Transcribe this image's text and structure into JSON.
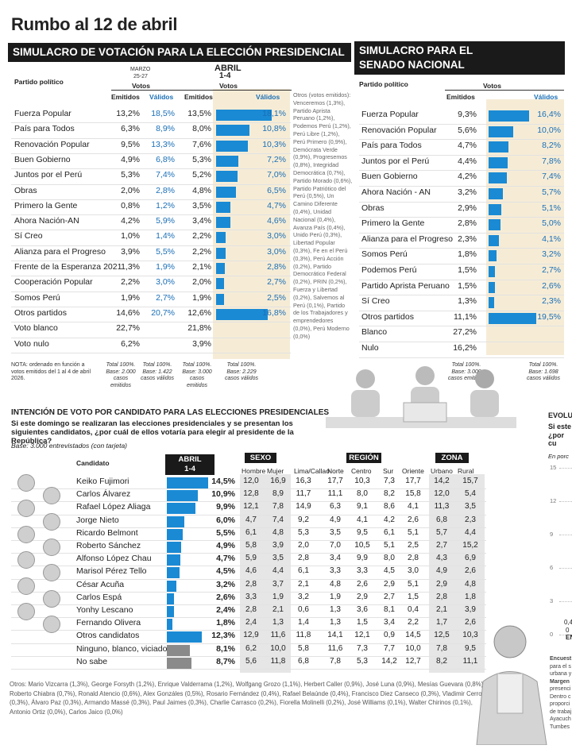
{
  "title": "Rumbo al 12 de abril",
  "presidential": {
    "heading": "SIMULACRO DE VOTACIÓN PARA LA ELECCIÓN PRESIDENCIAL",
    "partido_label": "Partido político",
    "marzo_label": "MARZO",
    "marzo_dates": "25-27",
    "abril_label": "ABRIL",
    "abril_dates": "1-4",
    "votos_label": "Votos",
    "emitidos_label": "Emitidos",
    "validos_label": "Válidos",
    "rows": [
      {
        "party": "Fuerza Popular",
        "m_e": "13,2%",
        "m_v": "18,5%",
        "a_e": "13,5%",
        "a_v": "18,1%",
        "v": 18.1
      },
      {
        "party": "País para Todos",
        "m_e": "6,3%",
        "m_v": "8,9%",
        "a_e": "8,0%",
        "a_v": "10,8%",
        "v": 10.8
      },
      {
        "party": "Renovación Popular",
        "m_e": "9,5%",
        "m_v": "13,3%",
        "a_e": "7,6%",
        "a_v": "10,3%",
        "v": 10.3
      },
      {
        "party": "Buen Gobierno",
        "m_e": "4,9%",
        "m_v": "6,8%",
        "a_e": "5,3%",
        "a_v": "7,2%",
        "v": 7.2
      },
      {
        "party": "Juntos por el Perú",
        "m_e": "5,3%",
        "m_v": "7,4%",
        "a_e": "5,2%",
        "a_v": "7,0%",
        "v": 7.0
      },
      {
        "party": "Obras",
        "m_e": "2,0%",
        "m_v": "2,8%",
        "a_e": "4,8%",
        "a_v": "6,5%",
        "v": 6.5
      },
      {
        "party": "Primero la Gente",
        "m_e": "0,8%",
        "m_v": "1,2%",
        "a_e": "3,5%",
        "a_v": "4,7%",
        "v": 4.7
      },
      {
        "party": "Ahora Nación-AN",
        "m_e": "4,2%",
        "m_v": "5,9%",
        "a_e": "3,4%",
        "a_v": "4,6%",
        "v": 4.6
      },
      {
        "party": "Sí Creo",
        "m_e": "1,0%",
        "m_v": "1,4%",
        "a_e": "2,2%",
        "a_v": "3,0%",
        "v": 3.0
      },
      {
        "party": "Alianza para el Progreso",
        "m_e": "3,9%",
        "m_v": "5,5%",
        "a_e": "2,2%",
        "a_v": "3,0%",
        "v": 3.0
      },
      {
        "party": "Frente de la Esperanza 2021",
        "m_e": "1,3%",
        "m_v": "1,9%",
        "a_e": "2,1%",
        "a_v": "2,8%",
        "v": 2.8
      },
      {
        "party": "Cooperación Popular",
        "m_e": "2,2%",
        "m_v": "3,0%",
        "a_e": "2,0%",
        "a_v": "2,7%",
        "v": 2.7
      },
      {
        "party": "Somos Perú",
        "m_e": "1,9%",
        "m_v": "2,7%",
        "a_e": "1,9%",
        "a_v": "2,5%",
        "v": 2.5
      },
      {
        "party": "Otros partidos",
        "m_e": "14,6%",
        "m_v": "20,7%",
        "a_e": "12,6%",
        "a_v": "16,8%",
        "v": 16.8
      },
      {
        "party": "Voto blanco",
        "m_e": "22,7%",
        "m_v": "",
        "a_e": "21,8%",
        "a_v": "",
        "v": 0
      },
      {
        "party": "Voto nulo",
        "m_e": "6,2%",
        "m_v": "",
        "a_e": "3,9%",
        "a_v": "",
        "v": 0
      }
    ],
    "otros_text": "Otros (votos emitidos): Venceremos (1,3%), Partido Aprista Peruano (1,2%), Podemos Perú (1,2%), Perú Libre (1,2%), Perú Primero (0,9%), Demócrata Verde (0,9%), Progresemos (0,8%), Integridad Democrática (0,7%), Partido Morado (0,6%), Partido Patriótico del Perú (0,5%), Un Camino Diferente (0,4%), Unidad Nacional (0,4%), Avanza País (0,4%), Unido Perú (0,3%), Libertad Popular (0,3%), Fe en el Perú (0,3%), Perú Acción (0,2%), Partido Democrático Federal (0,2%), PRIN (0,2%), Fuerza y Libertad (0,2%), Salvemos al Perú (0,1%), Partido de los Trabajadores y emprendedores (0,0%), Perú Moderno (0,0%)",
    "nota": "NOTA: ordenado en función a votos emitidos del 1 al 4 de abril 2026.",
    "base1": "Total 100%. Base: 2.000 casos emitidos",
    "base2": "Total 100%. Base: 1.422 casos válidos",
    "base3": "Total 100%. Base: 3.000 casos emitidos",
    "base4": "Total 100%. Base: 2.229 casos válidos"
  },
  "senate": {
    "heading_line1": "SIMULACRO PARA EL",
    "heading_line2": "SENADO NACIONAL",
    "partido_label": "Partido político",
    "votos_label": "Votos",
    "emitidos_label": "Emitidos",
    "validos_label": "Válidos",
    "rows": [
      {
        "party": "Fuerza Popular",
        "e": "9,3%",
        "val": "16,4%",
        "v": 16.4
      },
      {
        "party": "Renovación Popular",
        "e": "5,6%",
        "val": "10,0%",
        "v": 10.0
      },
      {
        "party": "País para Todos",
        "e": "4,7%",
        "val": "8,2%",
        "v": 8.2
      },
      {
        "party": "Juntos por el Perú",
        "e": "4,4%",
        "val": "7,8%",
        "v": 7.8
      },
      {
        "party": "Buen Gobierno",
        "e": "4,2%",
        "val": "7,4%",
        "v": 7.4
      },
      {
        "party": "Ahora Nación - AN",
        "e": "3,2%",
        "val": "5,7%",
        "v": 5.7
      },
      {
        "party": "Obras",
        "e": "2,9%",
        "val": "5,1%",
        "v": 5.1
      },
      {
        "party": "Primero la Gente",
        "e": "2,8%",
        "val": "5,0%",
        "v": 5.0
      },
      {
        "party": "Alianza para el Progreso",
        "e": "2,3%",
        "val": "4,1%",
        "v": 4.1
      },
      {
        "party": "Somos Perú",
        "e": "1,8%",
        "val": "3,2%",
        "v": 3.2
      },
      {
        "party": "Podemos Perú",
        "e": "1,5%",
        "val": "2,7%",
        "v": 2.7
      },
      {
        "party": "Partido Aprista Peruano",
        "e": "1,5%",
        "val": "2,6%",
        "v": 2.6
      },
      {
        "party": "Sí Creo",
        "e": "1,3%",
        "val": "2,3%",
        "v": 2.3
      },
      {
        "party": "Otros partidos",
        "e": "11,1%",
        "val": "19,5%",
        "v": 19.5
      },
      {
        "party": "Blanco",
        "e": "27,2%",
        "val": "",
        "v": 0
      },
      {
        "party": "Nulo",
        "e": "16,2%",
        "val": "",
        "v": 0
      }
    ],
    "base1": "Total 100%. Base: 3.000 casos emitidos",
    "base2": "Total 100%. Base: 1.698 casos válidos"
  },
  "candidates": {
    "heading": "INTENCIÓN DE VOTO POR CANDIDATO PARA LAS ELECCIONES PRESIDENCIALES",
    "question": "Si este domingo se realizaran las elecciones presidenciales y se presentan los siguientes candidatos, ¿por cuál de ellos votaría para elegir al presidente de la República?",
    "base": "Base: 3.000 entrevistados (con tarjeta)",
    "candidato_label": "Candidato",
    "abril_label": "ABRIL",
    "abril_dates": "1-4",
    "sexo_label": "SEXO",
    "region_label": "REGIÓN",
    "zona_label": "ZONA",
    "cols": [
      "Hombre",
      "Mujer",
      "Lima/Callao",
      "Norte",
      "Centro",
      "Sur",
      "Oriente",
      "Urbano",
      "Rural"
    ],
    "rows": [
      {
        "name": "Keiko Fujimori",
        "total": "14,5%",
        "v": 14.5,
        "d": [
          "12,0",
          "16,9",
          "16,3",
          "17,7",
          "10,3",
          "7,3",
          "17,7",
          "14,2",
          "15,7"
        ]
      },
      {
        "name": "Carlos Álvarez",
        "total": "10,9%",
        "v": 10.9,
        "d": [
          "12,8",
          "8,9",
          "11,7",
          "11,1",
          "8,0",
          "8,2",
          "15,8",
          "12,0",
          "5,4"
        ]
      },
      {
        "name": "Rafael López Aliaga",
        "total": "9,9%",
        "v": 9.9,
        "d": [
          "12,1",
          "7,8",
          "14,9",
          "6,3",
          "9,1",
          "8,6",
          "4,1",
          "11,3",
          "3,5"
        ]
      },
      {
        "name": "Jorge Nieto",
        "total": "6,0%",
        "v": 6.0,
        "d": [
          "4,7",
          "7,4",
          "9,2",
          "4,9",
          "4,1",
          "4,2",
          "2,6",
          "6,8",
          "2,3"
        ]
      },
      {
        "name": "Ricardo Belmont",
        "total": "5,5%",
        "v": 5.5,
        "d": [
          "6,1",
          "4,8",
          "5,3",
          "3,5",
          "9,5",
          "6,1",
          "5,1",
          "5,7",
          "4,4"
        ]
      },
      {
        "name": "Roberto Sánchez",
        "total": "4,9%",
        "v": 4.9,
        "d": [
          "5,8",
          "3,9",
          "2,0",
          "7,0",
          "10,5",
          "5,1",
          "2,5",
          "2,7",
          "15,2"
        ]
      },
      {
        "name": "Alfonso López Chau",
        "total": "4,7%",
        "v": 4.7,
        "d": [
          "5,9",
          "3,5",
          "2,8",
          "3,4",
          "9,9",
          "8,0",
          "2,8",
          "4,3",
          "6,9"
        ]
      },
      {
        "name": "Marisol Pérez Tello",
        "total": "4,5%",
        "v": 4.5,
        "d": [
          "4,6",
          "4,4",
          "6,1",
          "3,3",
          "3,3",
          "4,5",
          "3,0",
          "4,9",
          "2,6"
        ]
      },
      {
        "name": "César Acuña",
        "total": "3,2%",
        "v": 3.2,
        "d": [
          "2,8",
          "3,7",
          "2,1",
          "4,8",
          "2,6",
          "2,9",
          "5,1",
          "2,9",
          "4,8"
        ]
      },
      {
        "name": "Carlos Espá",
        "total": "2,6%",
        "v": 2.6,
        "d": [
          "3,3",
          "1,9",
          "3,2",
          "1,9",
          "2,9",
          "2,7",
          "1,5",
          "2,8",
          "1,8"
        ]
      },
      {
        "name": "Yonhy Lescano",
        "total": "2,4%",
        "v": 2.4,
        "d": [
          "2,8",
          "2,1",
          "0,6",
          "1,3",
          "3,6",
          "8,1",
          "0,4",
          "2,1",
          "3,9"
        ]
      },
      {
        "name": "Fernando Olivera",
        "total": "1,8%",
        "v": 1.8,
        "d": [
          "2,4",
          "1,3",
          "1,4",
          "1,3",
          "1,5",
          "3,4",
          "2,2",
          "1,7",
          "2,6"
        ]
      },
      {
        "name": "Otros candidatos",
        "total": "12,3%",
        "v": 12.3,
        "d": [
          "12,9",
          "11,6",
          "11,8",
          "14,1",
          "12,1",
          "0,9",
          "14,5",
          "12,5",
          "10,3"
        ]
      },
      {
        "name": "Ninguno, blanco, viciado",
        "total": "8,1%",
        "v": 8.1,
        "d": [
          "6,2",
          "10,0",
          "5,8",
          "11,6",
          "7,3",
          "7,7",
          "10,0",
          "7,8",
          "9,5"
        ],
        "gray": true
      },
      {
        "name": "No sabe",
        "total": "8,7%",
        "v": 8.7,
        "d": [
          "5,6",
          "11,8",
          "6,8",
          "7,8",
          "5,3",
          "14,2",
          "12,7",
          "8,2",
          "11,1"
        ],
        "gray": true
      }
    ],
    "otros_text": "Otros: Mario Vizcarra (1,3%), George Forsyth (1,2%), Enrique Valderrama (1,2%), Wolfgang Grozo (1,1%), Herbert Caller (0,9%), José Luna (0,9%), Mesías Guevara (0,8%), Roberto Chiabra (0,7%), Ronald Atencio (0,6%), Alex Gonzáles (0,5%), Rosario Fernández (0,4%), Rafael Belaúnde (0,4%), Francisco Diez Canseco (0,3%), Vladimir Cerron (0,3%), Álvaro Paz (0,3%), Armando Massé (0,3%), Paul Jaimes (0,3%), Charlie Carrasco (0,2%), Fiorella Molinelli (0,2%), José Williams (0,1%), Walter Chirinos (0,1%), Antonio Ortiz (0,0%), Carlos Jaico (0,0%)"
  },
  "side": {
    "evol": "EVOLU",
    "q1": "Si este",
    "q2": "¿por cu",
    "en_porc": "En porc",
    "ticks": [
      "15",
      "12",
      "9",
      "6",
      "3",
      "0"
    ],
    "v1": "0,4",
    "v2": "0",
    "en": "EN",
    "notes": [
      "Encuest",
      "para el s",
      "urbana y",
      "Margen",
      "presenci",
      "Dentro c",
      "proporci",
      "de trabaj",
      "Ayacuch",
      "Tumbes"
    ]
  },
  "colors": {
    "bar": "#1a8ad4",
    "beige": "#f6ecd6",
    "dark": "#1a1a1a",
    "blue_text": "#1a6fb7"
  }
}
